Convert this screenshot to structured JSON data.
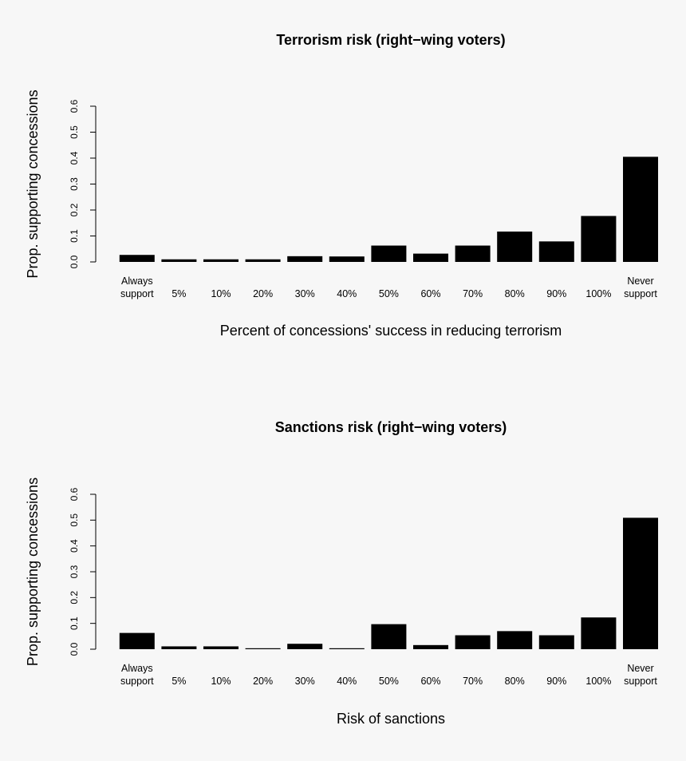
{
  "chart_data": [
    {
      "type": "bar",
      "title": "Terrorism risk (right−wing voters)",
      "xlabel": "Percent of concessions' success in reducing terrorism",
      "ylabel": "Prop. supporting concessions",
      "ylim": [
        0,
        0.6
      ],
      "yticks": [
        "0.0",
        "0.1",
        "0.2",
        "0.3",
        "0.4",
        "0.5",
        "0.6"
      ],
      "categories": [
        [
          "Always",
          "support"
        ],
        [
          "5%"
        ],
        [
          "10%"
        ],
        [
          "20%"
        ],
        [
          "30%"
        ],
        [
          "40%"
        ],
        [
          "50%"
        ],
        [
          "60%"
        ],
        [
          "70%"
        ],
        [
          "80%"
        ],
        [
          "90%"
        ],
        [
          "100%"
        ],
        [
          "Never",
          "support"
        ]
      ],
      "values": [
        0.027,
        0.01,
        0.01,
        0.01,
        0.022,
        0.021,
        0.063,
        0.032,
        0.063,
        0.117,
        0.079,
        0.177,
        0.405
      ]
    },
    {
      "type": "bar",
      "title": "Sanctions risk (right−wing voters)",
      "xlabel": "Risk of sanctions",
      "ylabel": "Prop. supporting concessions",
      "ylim": [
        0,
        0.6
      ],
      "yticks": [
        "0.0",
        "0.1",
        "0.2",
        "0.3",
        "0.4",
        "0.5",
        "0.6"
      ],
      "categories": [
        [
          "Always",
          "support"
        ],
        [
          "5%"
        ],
        [
          "10%"
        ],
        [
          "20%"
        ],
        [
          "30%"
        ],
        [
          "40%"
        ],
        [
          "50%"
        ],
        [
          "60%"
        ],
        [
          "70%"
        ],
        [
          "80%"
        ],
        [
          "90%"
        ],
        [
          "100%"
        ],
        [
          "Never",
          "support"
        ]
      ],
      "values": [
        0.063,
        0.011,
        0.011,
        0.003,
        0.021,
        0.003,
        0.097,
        0.016,
        0.054,
        0.07,
        0.054,
        0.123,
        0.509
      ]
    }
  ]
}
